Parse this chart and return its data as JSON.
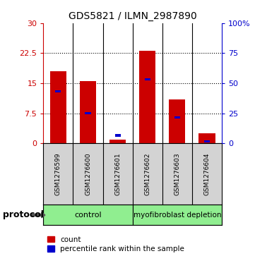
{
  "title": "GDS5821 / ILMN_2987890",
  "samples": [
    "GSM1276599",
    "GSM1276600",
    "GSM1276601",
    "GSM1276602",
    "GSM1276603",
    "GSM1276604"
  ],
  "red_values": [
    18.0,
    15.5,
    1.0,
    23.0,
    11.0,
    2.5
  ],
  "blue_values": [
    13.0,
    7.5,
    2.0,
    16.0,
    6.5,
    0.5
  ],
  "ylim": [
    0,
    30
  ],
  "yticks": [
    0,
    7.5,
    15,
    22.5,
    30
  ],
  "ytick_labels": [
    "0",
    "7.5",
    "15",
    "22.5",
    "30"
  ],
  "right_ytick_labels": [
    "0",
    "25",
    "50",
    "75",
    "100%"
  ],
  "red_color": "#CC0000",
  "blue_color": "#0000CC",
  "left_axis_color": "#CC0000",
  "right_axis_color": "#0000CC",
  "label_count": "count",
  "label_percentile": "percentile rank within the sample",
  "protocol_label": "protocol",
  "sample_bg_color": "#D3D3D3",
  "control_color": "#90EE90",
  "depletion_color": "#90EE90",
  "control_label": "control",
  "depletion_label": "myofibroblast depletion"
}
